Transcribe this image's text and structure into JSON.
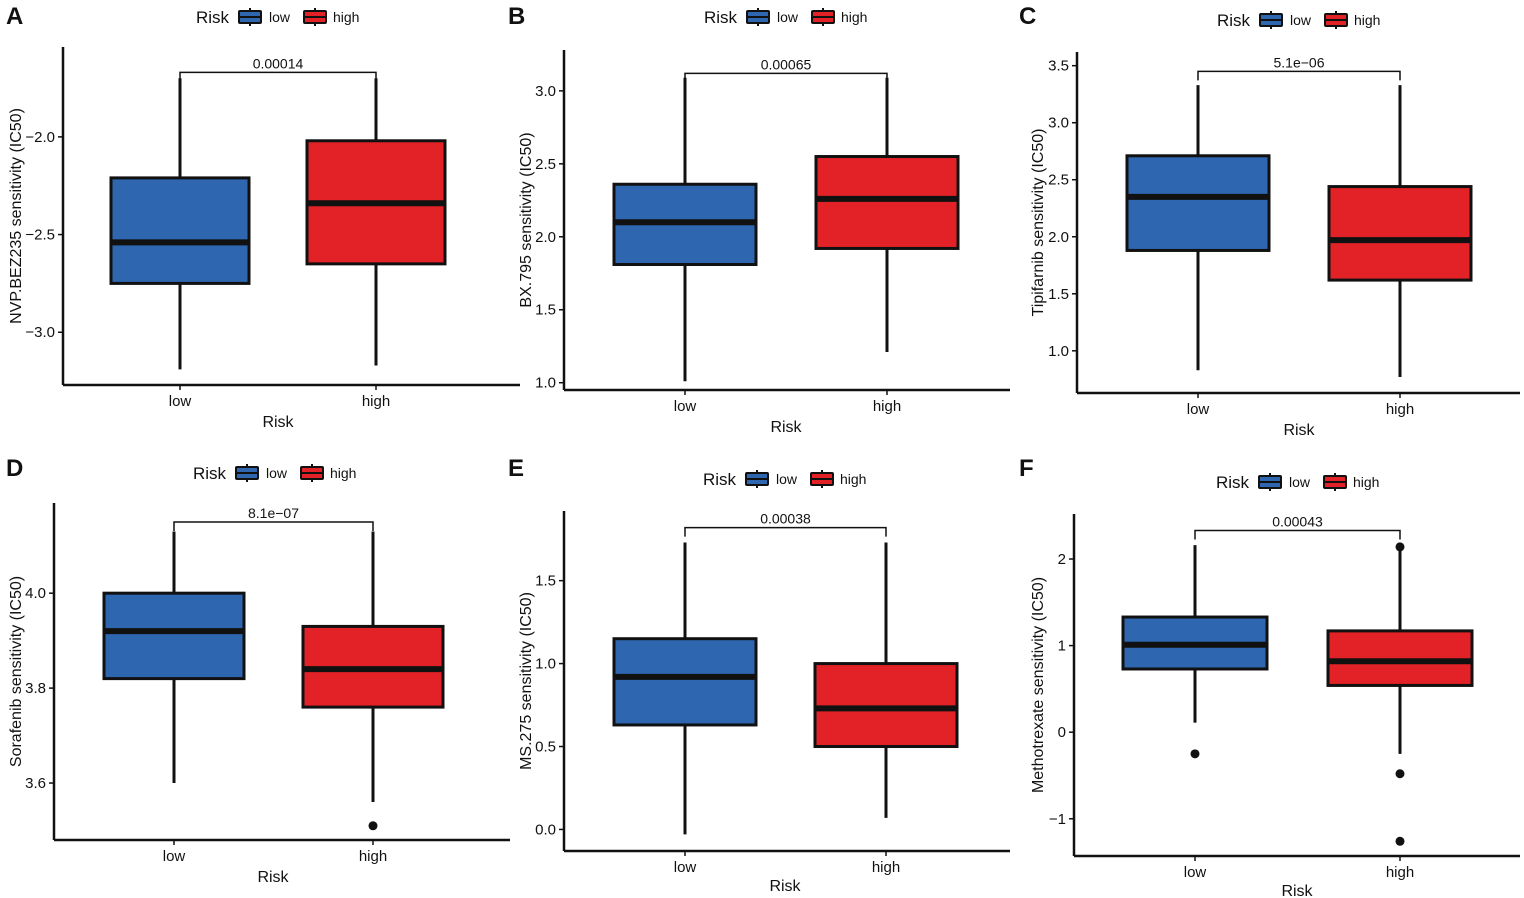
{
  "colors": {
    "low": "#2e66b0",
    "high": "#e32227",
    "line": "#111111"
  },
  "chart_data": [
    {
      "id": "A",
      "type": "box",
      "legend": {
        "title": "Risk",
        "items": [
          "low",
          "high"
        ]
      },
      "xlabel": "Risk",
      "ylabel": "NVP.BEZ235 sensitivity (IC50)",
      "categories": [
        "low",
        "high"
      ],
      "yticks": [
        -3.0,
        -2.5,
        -2.0
      ],
      "ytick_labels": [
        "−3.0",
        "−2.5",
        "−2.0"
      ],
      "ylim": [
        -3.27,
        -1.54
      ],
      "pvalue": "0.00014",
      "bracket_y": -1.67,
      "boxes": [
        {
          "group": "low",
          "whisker_low": -3.19,
          "q1": -2.75,
          "median": -2.54,
          "q3": -2.21,
          "whisker_high": -1.7,
          "outliers": []
        },
        {
          "group": "high",
          "whisker_low": -3.17,
          "q1": -2.65,
          "median": -2.34,
          "q3": -2.02,
          "whisker_high": -1.7,
          "outliers": []
        }
      ]
    },
    {
      "id": "B",
      "type": "box",
      "legend": {
        "title": "Risk",
        "items": [
          "low",
          "high"
        ]
      },
      "xlabel": "Risk",
      "ylabel": "BX.795 sensitivity (IC50)",
      "categories": [
        "low",
        "high"
      ],
      "yticks": [
        1.0,
        1.5,
        2.0,
        2.5,
        3.0
      ],
      "ytick_labels": [
        "1.0",
        "1.5",
        "2.0",
        "2.5",
        "3.0"
      ],
      "ylim": [
        0.95,
        3.28
      ],
      "pvalue": "0.00065",
      "bracket_y": 3.12,
      "boxes": [
        {
          "group": "low",
          "whisker_low": 1.01,
          "q1": 1.81,
          "median": 2.1,
          "q3": 2.36,
          "whisker_high": 3.09,
          "outliers": []
        },
        {
          "group": "high",
          "whisker_low": 1.21,
          "q1": 1.92,
          "median": 2.26,
          "q3": 2.55,
          "whisker_high": 3.09,
          "outliers": []
        }
      ]
    },
    {
      "id": "C",
      "type": "box",
      "legend": {
        "title": "Risk",
        "items": [
          "low",
          "high"
        ]
      },
      "xlabel": "Risk",
      "ylabel": "Tipifarnib sensitivity (IC50)",
      "categories": [
        "low",
        "high"
      ],
      "yticks": [
        1.0,
        1.5,
        2.0,
        2.5,
        3.0,
        3.5
      ],
      "ytick_labels": [
        "1.0",
        "1.5",
        "2.0",
        "2.5",
        "3.0",
        "3.5"
      ],
      "ylim": [
        0.63,
        3.62
      ],
      "pvalue": "5.1e−06",
      "bracket_y": 3.45,
      "boxes": [
        {
          "group": "low",
          "whisker_low": 0.83,
          "q1": 1.88,
          "median": 2.35,
          "q3": 2.71,
          "whisker_high": 3.33,
          "outliers": []
        },
        {
          "group": "high",
          "whisker_low": 0.77,
          "q1": 1.62,
          "median": 1.97,
          "q3": 2.44,
          "whisker_high": 3.33,
          "outliers": []
        }
      ]
    },
    {
      "id": "D",
      "type": "box",
      "legend": {
        "title": "Risk",
        "items": [
          "low",
          "high"
        ]
      },
      "xlabel": "Risk",
      "ylabel": "Sorafenib sensitivity (IC50)",
      "categories": [
        "low",
        "high"
      ],
      "yticks": [
        3.6,
        3.8,
        4.0
      ],
      "ytick_labels": [
        "3.6",
        "3.8",
        "4.0"
      ],
      "ylim": [
        3.48,
        4.19
      ],
      "pvalue": "8.1e−07",
      "bracket_y": 4.15,
      "boxes": [
        {
          "group": "low",
          "whisker_low": 3.6,
          "q1": 3.82,
          "median": 3.92,
          "q3": 4.0,
          "whisker_high": 4.13,
          "outliers": []
        },
        {
          "group": "high",
          "whisker_low": 3.56,
          "q1": 3.76,
          "median": 3.84,
          "q3": 3.93,
          "whisker_high": 4.13,
          "outliers": [
            3.51
          ]
        }
      ]
    },
    {
      "id": "E",
      "type": "box",
      "legend": {
        "title": "Risk",
        "items": [
          "low",
          "high"
        ]
      },
      "xlabel": "Risk",
      "ylabel": "MS.275 sensitivity (IC50)",
      "categories": [
        "low",
        "high"
      ],
      "yticks": [
        0.0,
        0.5,
        1.0,
        1.5
      ],
      "ytick_labels": [
        "0.0",
        "0.5",
        "1.0",
        "1.5"
      ],
      "ylim": [
        -0.13,
        1.92
      ],
      "pvalue": "0.00038",
      "bracket_y": 1.82,
      "boxes": [
        {
          "group": "low",
          "whisker_low": -0.03,
          "q1": 0.63,
          "median": 0.92,
          "q3": 1.15,
          "whisker_high": 1.73,
          "outliers": []
        },
        {
          "group": "high",
          "whisker_low": 0.07,
          "q1": 0.5,
          "median": 0.73,
          "q3": 1.0,
          "whisker_high": 1.73,
          "outliers": []
        }
      ]
    },
    {
      "id": "F",
      "type": "box",
      "legend": {
        "title": "Risk",
        "items": [
          "low",
          "high"
        ]
      },
      "xlabel": "Risk",
      "ylabel": "Methotrexate sensitivity (IC50)",
      "categories": [
        "low",
        "high"
      ],
      "yticks": [
        -1,
        0,
        1,
        2
      ],
      "ytick_labels": [
        "−1",
        "0",
        "1",
        "2"
      ],
      "ylim": [
        -1.43,
        2.52
      ],
      "pvalue": "0.00043",
      "bracket_y": 2.33,
      "boxes": [
        {
          "group": "low",
          "whisker_low": 0.11,
          "q1": 0.73,
          "median": 1.01,
          "q3": 1.33,
          "whisker_high": 2.16,
          "outliers": [
            -0.25
          ]
        },
        {
          "group": "high",
          "whisker_low": -0.25,
          "q1": 0.54,
          "median": 0.82,
          "q3": 1.17,
          "whisker_high": 2.16,
          "outliers": [
            2.14,
            -0.48,
            -1.26
          ]
        }
      ]
    }
  ]
}
